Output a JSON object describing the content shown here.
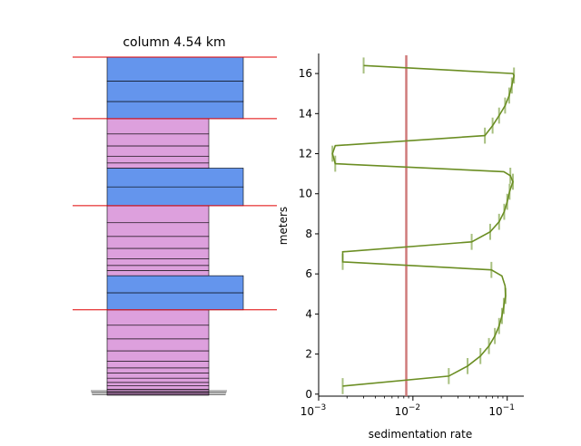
{
  "chart_data": [
    {
      "type": "stratigraphic-column",
      "title": "column 4.54 km",
      "colors": {
        "wide_bed": "#6495ed",
        "narrow_bed": "#dda0dd",
        "boundary": "#e00000"
      },
      "bed_groups": [
        {
          "kind": "narrow",
          "layers_m": [
            0.0,
            0.1,
            0.2,
            0.35,
            0.55,
            0.75,
            1.0,
            1.3,
            1.6,
            2.0,
            2.6,
            3.3,
            4.1,
            5.0
          ]
        },
        {
          "kind": "wide",
          "layers_m": [
            5.0,
            6.0,
            7.0
          ]
        },
        {
          "kind": "narrow",
          "layers_m": [
            7.0,
            7.3,
            7.6,
            8.0,
            8.6,
            9.3,
            10.1,
            11.1
          ]
        },
        {
          "kind": "wide",
          "layers_m": [
            11.1,
            12.2,
            13.3
          ]
        },
        {
          "kind": "narrow",
          "layers_m": [
            13.3,
            13.6,
            14.0,
            14.6,
            15.3,
            16.2
          ]
        },
        {
          "kind": "wide",
          "layers_m": [
            16.2,
            17.2,
            18.4,
            19.8
          ]
        }
      ],
      "boundaries_m": [
        5.0,
        11.1,
        16.2,
        19.8
      ]
    },
    {
      "type": "line",
      "xlabel": "sedimentation rate",
      "ylabel": "meters",
      "xscale": "log",
      "xlim": [
        0.001,
        0.15
      ],
      "ylim": [
        -0.1,
        17.0
      ],
      "xticks": [
        {
          "value": 0.001,
          "label": "10",
          "exp": "−3"
        },
        {
          "value": 0.01,
          "label": "10",
          "exp": "−2"
        },
        {
          "value": 0.1,
          "label": "10",
          "exp": "−1"
        }
      ],
      "yticks": [
        0,
        2,
        4,
        6,
        8,
        10,
        12,
        14,
        16
      ],
      "reference_line": {
        "x": 0.0085,
        "color": "#c86464"
      },
      "series_color": "#6b8e23",
      "errorbar_color": "#a8c080",
      "x": [
        0.0018,
        0.024,
        0.038,
        0.052,
        0.064,
        0.074,
        0.082,
        0.088,
        0.092,
        0.096,
        0.095,
        0.088,
        0.068,
        0.0018,
        0.0018,
        0.042,
        0.066,
        0.082,
        0.093,
        0.1,
        0.106,
        0.115,
        0.108,
        0.092,
        0.0015,
        0.0014,
        0.0015,
        0.058,
        0.07,
        0.082,
        0.095,
        0.105,
        0.112,
        0.118,
        0.115,
        0.003
      ],
      "y": [
        0.4,
        0.9,
        1.4,
        1.9,
        2.4,
        2.9,
        3.4,
        3.9,
        4.4,
        4.9,
        5.4,
        5.9,
        6.2,
        6.6,
        7.1,
        7.6,
        8.1,
        8.6,
        9.1,
        9.6,
        10.1,
        10.6,
        10.9,
        11.1,
        11.5,
        12.0,
        12.4,
        12.9,
        13.4,
        13.9,
        14.4,
        14.9,
        15.4,
        15.9,
        16.0,
        16.4
      ],
      "bars_x": [
        0.0018,
        0.024,
        0.038,
        0.052,
        0.064,
        0.074,
        0.082,
        0.088,
        0.092,
        0.096,
        0.068,
        0.0018,
        0.042,
        0.066,
        0.082,
        0.093,
        0.1,
        0.106,
        0.115,
        0.108,
        0.0015,
        0.0014,
        0.058,
        0.07,
        0.082,
        0.095,
        0.105,
        0.112,
        0.118,
        0.003
      ],
      "bars_y": [
        0.4,
        0.9,
        1.4,
        1.9,
        2.4,
        2.9,
        3.4,
        3.9,
        4.4,
        4.9,
        6.2,
        6.6,
        7.6,
        8.1,
        8.6,
        9.1,
        9.6,
        10.1,
        10.6,
        10.9,
        11.5,
        12.0,
        12.9,
        13.4,
        13.9,
        14.4,
        14.9,
        15.4,
        15.9,
        16.4
      ],
      "bar_half_height_m": 0.4
    }
  ]
}
